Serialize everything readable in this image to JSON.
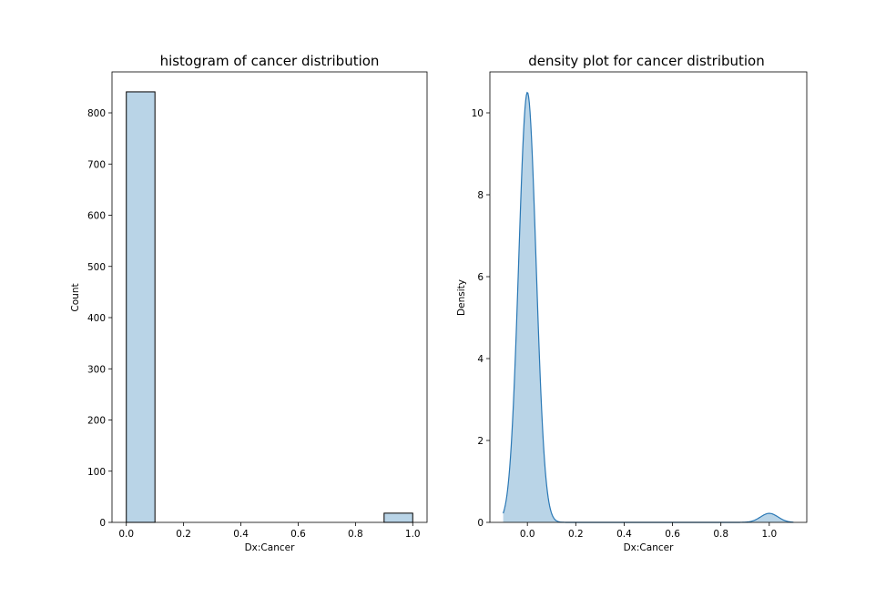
{
  "chart_data": [
    {
      "type": "bar",
      "title": "histogram of cancer distribution",
      "xlabel": "Dx:Cancer",
      "ylabel": "Count",
      "xlim": [
        -0.05,
        1.05
      ],
      "ylim": [
        0,
        880
      ],
      "xticks": [
        0.0,
        0.2,
        0.4,
        0.6,
        0.8,
        1.0
      ],
      "xtick_labels": [
        "0.0",
        "0.2",
        "0.4",
        "0.6",
        "0.8",
        "1.0"
      ],
      "yticks": [
        0,
        100,
        200,
        300,
        400,
        500,
        600,
        700,
        800
      ],
      "ytick_labels": [
        "0",
        "100",
        "200",
        "300",
        "400",
        "500",
        "600",
        "700",
        "800"
      ],
      "bins": [
        {
          "start": 0.0,
          "end": 0.1,
          "count": 841
        },
        {
          "start": 0.1,
          "end": 0.2,
          "count": 0
        },
        {
          "start": 0.2,
          "end": 0.3,
          "count": 0
        },
        {
          "start": 0.3,
          "end": 0.4,
          "count": 0
        },
        {
          "start": 0.4,
          "end": 0.5,
          "count": 0
        },
        {
          "start": 0.5,
          "end": 0.6,
          "count": 0
        },
        {
          "start": 0.6,
          "end": 0.7,
          "count": 0
        },
        {
          "start": 0.7,
          "end": 0.8,
          "count": 0
        },
        {
          "start": 0.8,
          "end": 0.9,
          "count": 0
        },
        {
          "start": 0.9,
          "end": 1.0,
          "count": 18
        }
      ],
      "colors": {
        "fill": "#b9d4e7",
        "edge": "#000000"
      }
    },
    {
      "type": "area",
      "title": "density plot for cancer distribution",
      "xlabel": "Dx:Cancer",
      "ylabel": "Density",
      "xlim": [
        -0.155,
        1.155
      ],
      "ylim": [
        0,
        11
      ],
      "xticks": [
        0.0,
        0.2,
        0.4,
        0.6,
        0.8,
        1.0
      ],
      "xtick_labels": [
        "0.0",
        "0.2",
        "0.4",
        "0.6",
        "0.8",
        "1.0"
      ],
      "yticks": [
        0,
        2,
        4,
        6,
        8,
        10
      ],
      "ytick_labels": [
        "0",
        "2",
        "4",
        "6",
        "8",
        "10"
      ],
      "x_range": [
        -0.1,
        1.1
      ],
      "peaks": [
        {
          "x": 0.0,
          "density": 10.5
        },
        {
          "x": 1.0,
          "density": 0.22
        }
      ],
      "colors": {
        "fill": "#b9d4e7",
        "line": "#2a78b5"
      }
    }
  ]
}
